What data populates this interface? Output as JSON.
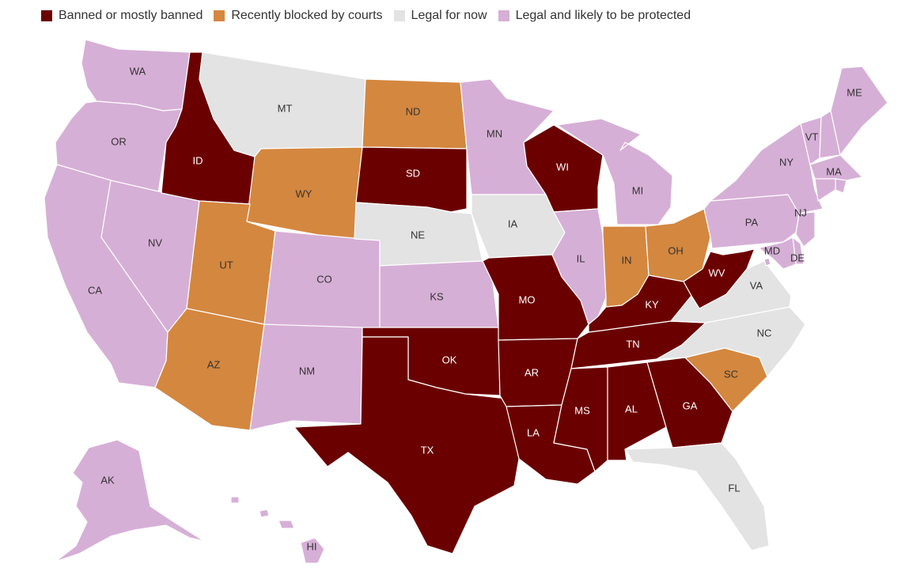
{
  "colors": {
    "banned": "#6b0000",
    "blocked": "#d4873f",
    "legal_now": "#e3e3e3",
    "protected": "#d6afd6",
    "label_dark_bg": "#ffffff",
    "label_light_bg": "#333333"
  },
  "legend": [
    {
      "key": "banned",
      "label": "Banned or mostly banned"
    },
    {
      "key": "blocked",
      "label": "Recently blocked by courts"
    },
    {
      "key": "legal_now",
      "label": "Legal for now"
    },
    {
      "key": "protected",
      "label": "Legal and likely to be protected"
    }
  ],
  "states": {
    "WA": "protected",
    "OR": "protected",
    "CA": "protected",
    "NV": "protected",
    "ID": "banned",
    "MT": "legal_now",
    "WY": "blocked",
    "UT": "blocked",
    "AZ": "blocked",
    "CO": "protected",
    "NM": "protected",
    "ND": "blocked",
    "SD": "banned",
    "NE": "legal_now",
    "KS": "protected",
    "OK": "banned",
    "TX": "banned",
    "MN": "protected",
    "IA": "legal_now",
    "MO": "banned",
    "AR": "banned",
    "LA": "banned",
    "WI": "banned",
    "IL": "protected",
    "MI": "protected",
    "IN": "blocked",
    "OH": "blocked",
    "KY": "banned",
    "TN": "banned",
    "MS": "banned",
    "AL": "banned",
    "GA": "banned",
    "FL": "legal_now",
    "SC": "blocked",
    "NC": "legal_now",
    "VA": "legal_now",
    "WV": "banned",
    "PA": "protected",
    "NY": "protected",
    "VT": "protected",
    "NH": "protected",
    "ME": "protected",
    "MA": "protected",
    "RI": "protected",
    "CT": "protected",
    "NJ": "protected",
    "DE": "protected",
    "MD": "protected",
    "DC": "protected",
    "AK": "protected",
    "HI": "protected"
  },
  "labels": {
    "WA": "WA",
    "OR": "OR",
    "CA": "CA",
    "NV": "NV",
    "ID": "ID",
    "MT": "MT",
    "WY": "WY",
    "UT": "UT",
    "AZ": "AZ",
    "CO": "CO",
    "NM": "NM",
    "ND": "ND",
    "SD": "SD",
    "NE": "NE",
    "KS": "KS",
    "OK": "OK",
    "TX": "TX",
    "MN": "MN",
    "IA": "IA",
    "MO": "MO",
    "AR": "AR",
    "LA": "LA",
    "WI": "WI",
    "IL": "IL",
    "MI": "MI",
    "IN": "IN",
    "OH": "OH",
    "KY": "KY",
    "TN": "TN",
    "MS": "MS",
    "AL": "AL",
    "GA": "GA",
    "FL": "FL",
    "SC": "SC",
    "NC": "NC",
    "VA": "VA",
    "WV": "WV",
    "PA": "PA",
    "NY": "NY",
    "VT": "VT",
    "ME": "ME",
    "MA": "MA",
    "NJ": "NJ",
    "DE": "DE",
    "MD": "MD",
    "AK": "AK",
    "HI": "HI"
  }
}
